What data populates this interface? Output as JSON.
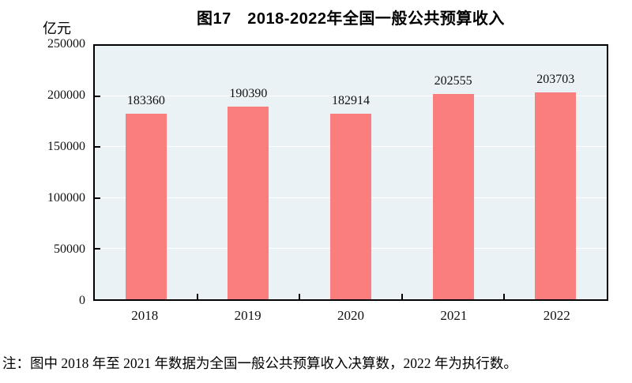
{
  "figure": {
    "title": "图17　2018-2022年全国一般公共预算收入",
    "unit_label": "亿元",
    "note": "注：图中 2018 年至 2021 年数据为全国一般公共预算收入决算数，2022 年为执行数。"
  },
  "chart_data": {
    "type": "bar",
    "title": "图17　2018-2022年全国一般公共预算收入",
    "categories": [
      "2018",
      "2019",
      "2020",
      "2021",
      "2022"
    ],
    "values": [
      183360,
      190390,
      182914,
      202555,
      203703
    ],
    "xlabel": "",
    "ylabel": "亿元",
    "ylim": [
      0,
      250000
    ],
    "yticks": [
      0,
      50000,
      100000,
      150000,
      200000,
      250000
    ],
    "grid": "horizontal white lines at y ticks",
    "legend": "none",
    "data_labels": "shown above each bar"
  },
  "colors": {
    "bar": "#FA7E7E",
    "plot_background": "#EAF2F6",
    "axis": "#000000",
    "text": "#000000",
    "page_background": "#FFFFFF"
  }
}
